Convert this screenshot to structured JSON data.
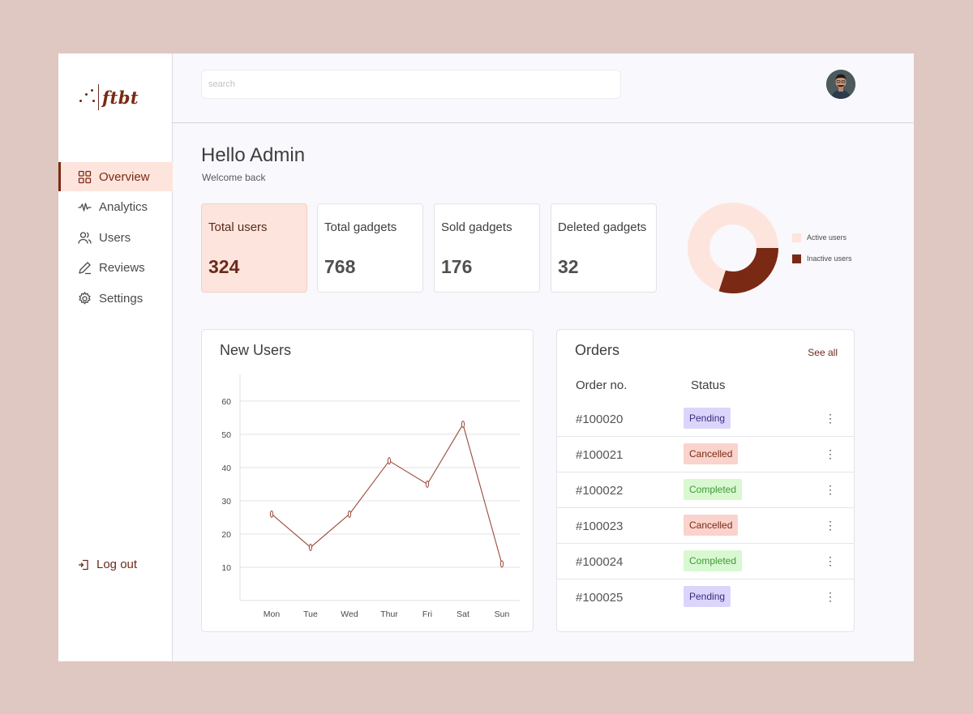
{
  "brand": {
    "name": "ftbt"
  },
  "sidebar": {
    "items": [
      {
        "label": "Overview",
        "icon": "grid-icon",
        "active": true
      },
      {
        "label": "Analytics",
        "icon": "pulse-icon",
        "active": false
      },
      {
        "label": "Users",
        "icon": "users-icon",
        "active": false
      },
      {
        "label": "Reviews",
        "icon": "pen-icon",
        "active": false
      },
      {
        "label": "Settings",
        "icon": "gear-icon",
        "active": false
      }
    ],
    "logout_label": "Log out"
  },
  "header": {
    "search_placeholder": "search"
  },
  "greeting": {
    "title": "Hello Admin",
    "subtitle": "Welcome back"
  },
  "stats": [
    {
      "label": "Total users",
      "value": "324"
    },
    {
      "label": "Total gadgets",
      "value": "768"
    },
    {
      "label": "Sold gadgets",
      "value": "176"
    },
    {
      "label": "Deleted gadgets",
      "value": "32"
    }
  ],
  "user_split": {
    "legend": [
      "Active users",
      "Inactive users"
    ],
    "colors": [
      "#fde5dd",
      "#7a2a14"
    ],
    "inactive_fraction": 0.3
  },
  "new_users": {
    "title": "New Users",
    "chart_data": {
      "type": "line",
      "categories": [
        "Mon",
        "Tue",
        "Wed",
        "Thur",
        "Fri",
        "Sat",
        "Sun"
      ],
      "values": [
        26,
        16,
        26,
        42,
        35,
        53,
        11
      ],
      "yticks": [
        10,
        20,
        30,
        40,
        50,
        60
      ],
      "ylim": [
        0,
        68
      ],
      "grid": true,
      "line_color": "#9b4a3a"
    }
  },
  "orders": {
    "title": "Orders",
    "see_all": "See all",
    "columns": [
      "Order no.",
      "Status"
    ],
    "rows": [
      {
        "order_no": "#100020",
        "status": "Pending"
      },
      {
        "order_no": "#100021",
        "status": "Cancelled"
      },
      {
        "order_no": "#100022",
        "status": "Completed"
      },
      {
        "order_no": "#100023",
        "status": "Cancelled"
      },
      {
        "order_no": "#100024",
        "status": "Completed"
      },
      {
        "order_no": "#100025",
        "status": "Pending"
      }
    ]
  }
}
